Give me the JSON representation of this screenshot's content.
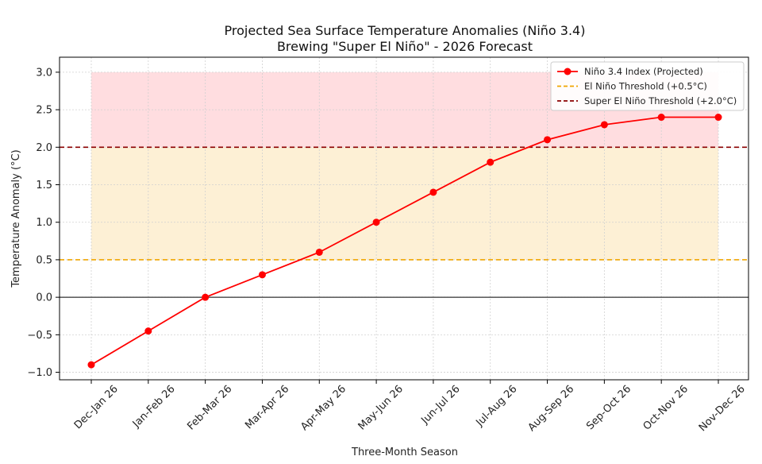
{
  "chart_data": {
    "type": "line",
    "title": "Projected Sea Surface Temperature Anomalies (Niño 3.4)",
    "subtitle": "Brewing \"Super El Niño\" - 2026 Forecast",
    "xlabel": "Three-Month Season",
    "ylabel": "Temperature Anomaly (°C)",
    "ylim": [
      -1.1,
      3.2
    ],
    "yticks": [
      -1.0,
      -0.5,
      0.0,
      0.5,
      1.0,
      1.5,
      2.0,
      2.5,
      3.0
    ],
    "ytick_labels": [
      "−1.0",
      "−0.5",
      "0.0",
      "0.5",
      "1.0",
      "1.5",
      "2.0",
      "2.5",
      "3.0"
    ],
    "grid": true,
    "legend_position": "top-right",
    "categories": [
      "Dec-Jan 26",
      "Jan-Feb 26",
      "Feb-Mar 26",
      "Mar-Apr 26",
      "Apr-May 26",
      "May-Jun 26",
      "Jun-Jul 26",
      "Jul-Aug 26",
      "Aug-Sep 26",
      "Sep-Oct 26",
      "Oct-Nov 26",
      "Nov-Dec 26"
    ],
    "series": [
      {
        "name": "Niño 3.4 Index (Projected)",
        "color": "#ff0000",
        "values": [
          -0.9,
          -0.45,
          0.0,
          0.3,
          0.6,
          1.0,
          1.4,
          1.8,
          2.1,
          2.3,
          2.4,
          2.4
        ]
      }
    ],
    "thresholds": [
      {
        "name": "El Niño Threshold (+0.5°C)",
        "value": 0.5,
        "color": "#f0a500",
        "style": "dashed"
      },
      {
        "name": "Super El Niño Threshold (+2.0°C)",
        "value": 2.0,
        "color": "#8b0000",
        "style": "dashed"
      }
    ],
    "zero_line": {
      "value": 0.0,
      "color": "#000000"
    },
    "bands": [
      {
        "from": 0.5,
        "to": 2.0,
        "color": "#fdf0d5"
      },
      {
        "from": 2.0,
        "to": 3.0,
        "color": "#ffdde0"
      }
    ]
  }
}
